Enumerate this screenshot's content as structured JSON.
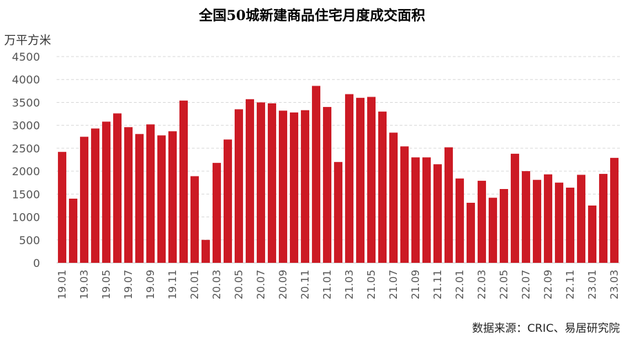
{
  "chart_data": {
    "type": "bar",
    "title": "全国50城新建商品住宅月度成交面积",
    "ylabel": "万平方米",
    "ylim": [
      0,
      4500
    ],
    "yticks": [
      0,
      500,
      1000,
      1500,
      2000,
      2500,
      3000,
      3500,
      4000,
      4500
    ],
    "grid": true,
    "bar_color": "#cc1a24",
    "categories": [
      "19.01",
      "19.02",
      "19.03",
      "19.04",
      "19.05",
      "19.06",
      "19.07",
      "19.08",
      "19.09",
      "19.10",
      "19.11",
      "19.12",
      "20.01",
      "20.02",
      "20.03",
      "20.04",
      "20.05",
      "20.06",
      "20.07",
      "20.08",
      "20.09",
      "20.10",
      "20.11",
      "20.12",
      "21.01",
      "21.02",
      "21.03",
      "21.04",
      "21.05",
      "21.06",
      "21.07",
      "21.08",
      "21.09",
      "21.10",
      "21.11",
      "21.12",
      "22.01",
      "22.02",
      "22.03",
      "22.04",
      "22.05",
      "22.06",
      "22.07",
      "22.08",
      "22.09",
      "22.10",
      "22.11",
      "22.12",
      "23.01",
      "23.02",
      "23.03"
    ],
    "xtick_labels": [
      "19.01",
      "",
      "19.03",
      "",
      "19.05",
      "",
      "19.07",
      "",
      "19.09",
      "",
      "19.11",
      "",
      "20.01",
      "",
      "20.03",
      "",
      "20.05",
      "",
      "20.07",
      "",
      "20.09",
      "",
      "20.11",
      "",
      "21.01",
      "",
      "21.03",
      "",
      "21.05",
      "",
      "21.07",
      "",
      "21.09",
      "",
      "21.11",
      "",
      "22.01",
      "",
      "22.03",
      "",
      "22.05",
      "",
      "22.07",
      "",
      "22.09",
      "",
      "22.11",
      "",
      "23.01",
      "",
      "23.03"
    ],
    "values": [
      2420,
      1400,
      2750,
      2930,
      3080,
      3260,
      2960,
      2810,
      3020,
      2780,
      2870,
      3540,
      1890,
      500,
      2180,
      2690,
      3350,
      3570,
      3500,
      3480,
      3320,
      3280,
      3330,
      3860,
      3400,
      2200,
      3680,
      3600,
      3620,
      3300,
      2840,
      2540,
      2300,
      2300,
      2150,
      2520,
      1840,
      1310,
      1790,
      1420,
      1610,
      2380,
      2000,
      1810,
      1930,
      1750,
      1640,
      1920,
      1250,
      1940,
      2290
    ]
  },
  "source_note": "数据来源：CRIC、易居研究院"
}
